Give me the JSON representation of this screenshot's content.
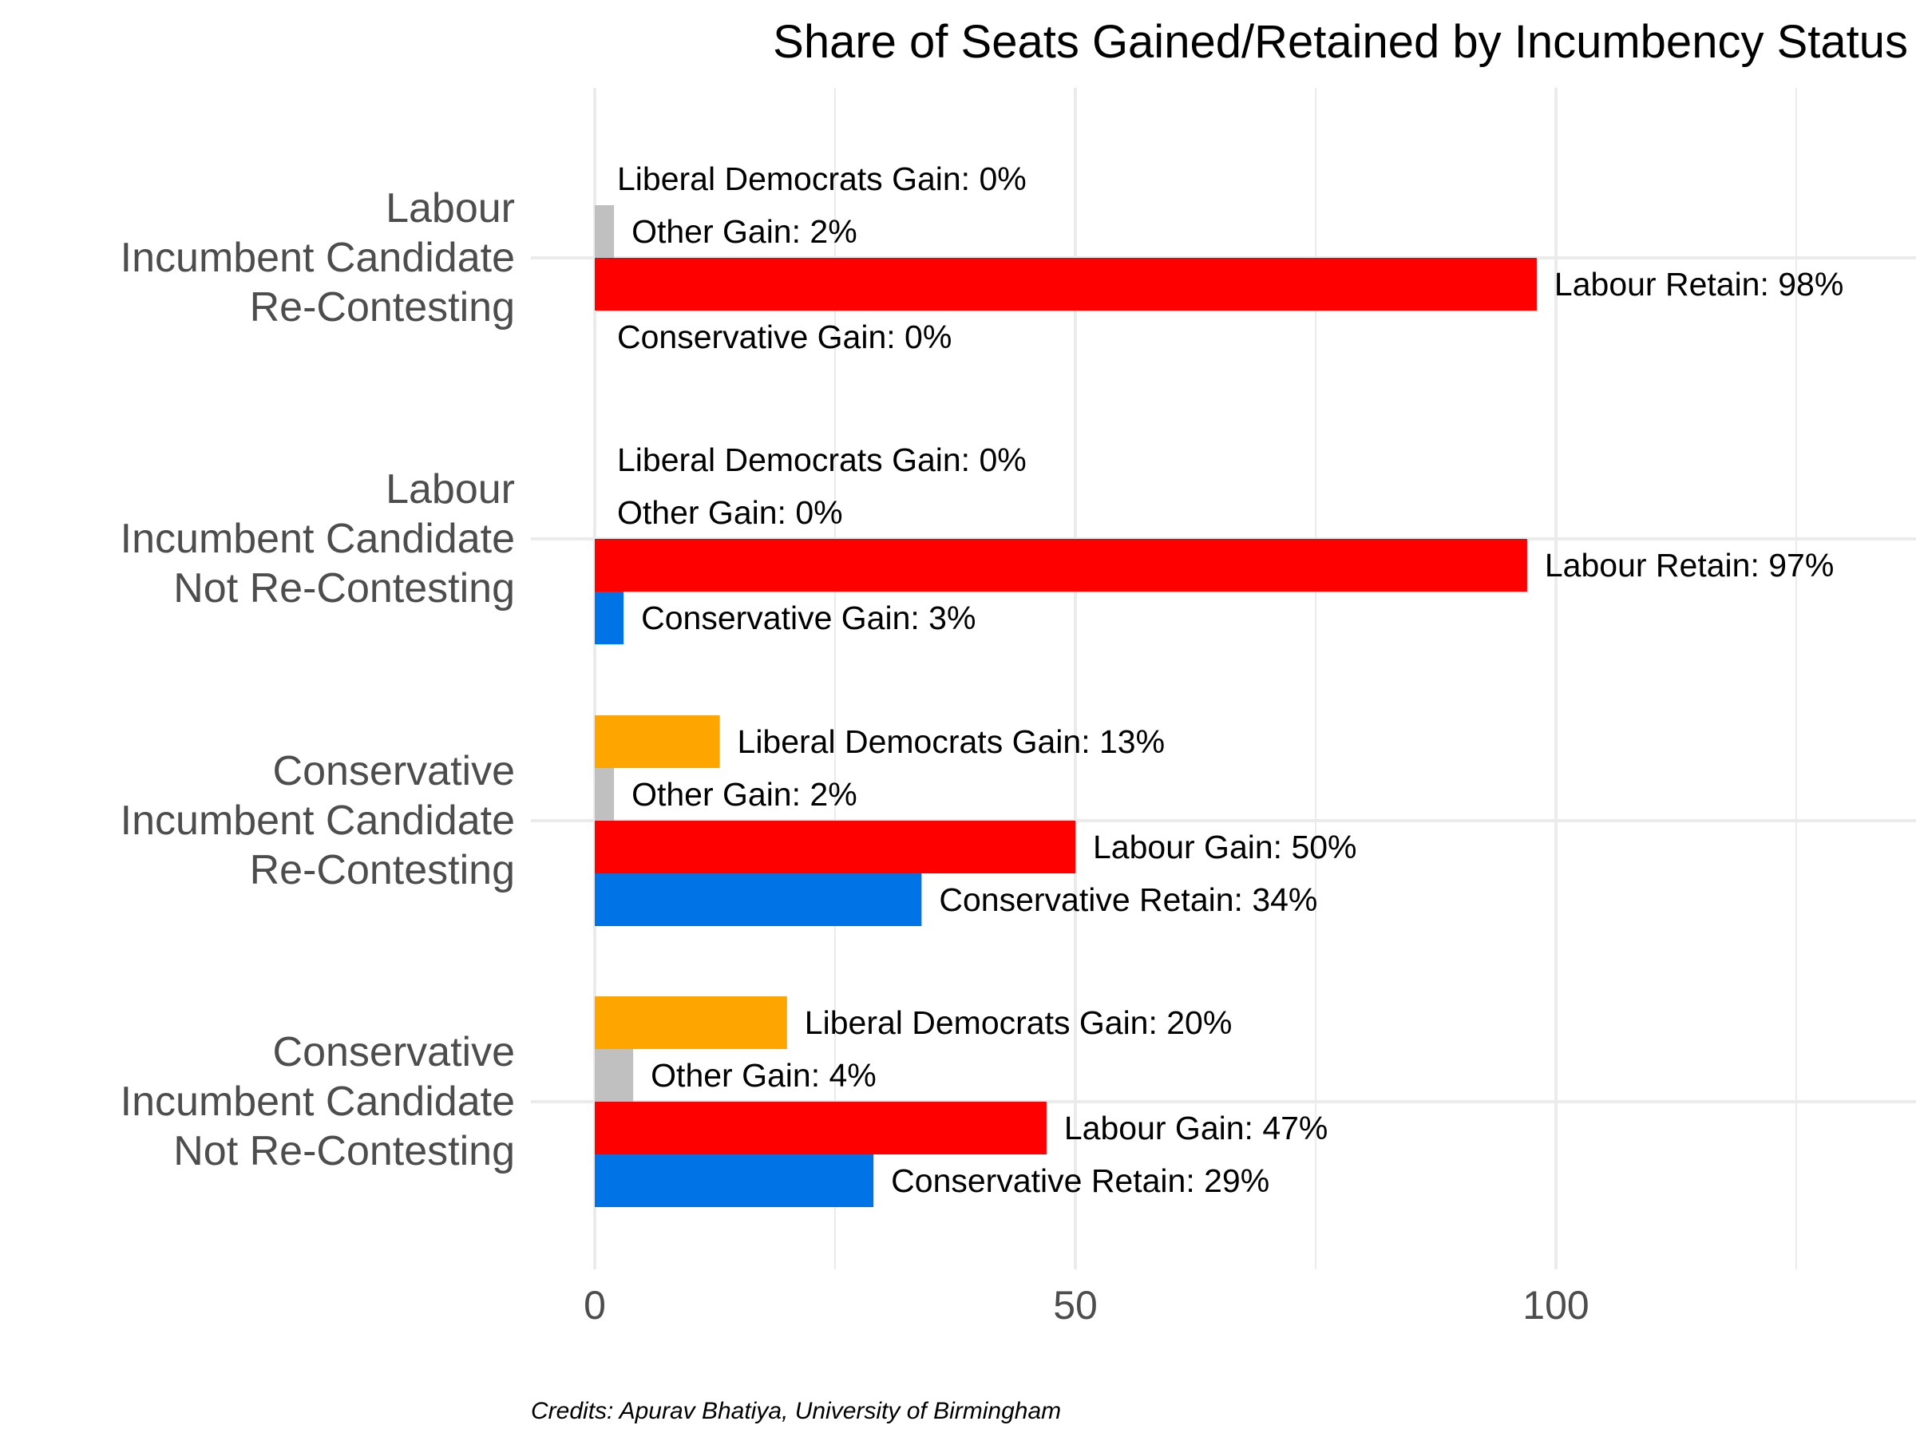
{
  "chart_data": {
    "type": "bar",
    "orientation": "horizontal",
    "title": "Share of Seats Gained/Retained by Incumbency Status",
    "xlabel": "",
    "ylabel": "",
    "xlim": [
      0,
      135
    ],
    "x_ticks": [
      0,
      50,
      100
    ],
    "grid": true,
    "legend": "none",
    "caption": "Credits: Apurav Bhatiya, University of Birmingham",
    "colors": {
      "Liberal Democrats": "#FFA500",
      "Other": "#C0C0C0",
      "Labour": "#FF0000",
      "Conservative": "#0073E6"
    },
    "categories": [
      {
        "label_lines": [
          "Labour",
          "Incumbent Candidate",
          "Re-Contesting"
        ],
        "bars": [
          {
            "party": "Liberal Democrats",
            "value": 0,
            "label": "Liberal Democrats Gain: 0%"
          },
          {
            "party": "Other",
            "value": 2,
            "label": "Other Gain: 2%"
          },
          {
            "party": "Labour",
            "value": 98,
            "label": "Labour Retain: 98%"
          },
          {
            "party": "Conservative",
            "value": 0,
            "label": "Conservative Gain: 0%"
          }
        ]
      },
      {
        "label_lines": [
          "Labour",
          "Incumbent Candidate",
          "Not Re-Contesting"
        ],
        "bars": [
          {
            "party": "Liberal Democrats",
            "value": 0,
            "label": "Liberal Democrats Gain: 0%"
          },
          {
            "party": "Other",
            "value": 0,
            "label": "Other Gain: 0%"
          },
          {
            "party": "Labour",
            "value": 97,
            "label": "Labour Retain: 97%"
          },
          {
            "party": "Conservative",
            "value": 3,
            "label": "Conservative Gain: 3%"
          }
        ]
      },
      {
        "label_lines": [
          "Conservative",
          "Incumbent Candidate",
          "Re-Contesting"
        ],
        "bars": [
          {
            "party": "Liberal Democrats",
            "value": 13,
            "label": "Liberal Democrats Gain: 13%"
          },
          {
            "party": "Other",
            "value": 2,
            "label": "Other Gain: 2%"
          },
          {
            "party": "Labour",
            "value": 50,
            "label": "Labour Gain: 50%"
          },
          {
            "party": "Conservative",
            "value": 34,
            "label": "Conservative Retain: 34%"
          }
        ]
      },
      {
        "label_lines": [
          "Conservative",
          "Incumbent Candidate",
          "Not Re-Contesting"
        ],
        "bars": [
          {
            "party": "Liberal Democrats",
            "value": 20,
            "label": "Liberal Democrats Gain: 20%"
          },
          {
            "party": "Other",
            "value": 4,
            "label": "Other Gain: 4%"
          },
          {
            "party": "Labour",
            "value": 47,
            "label": "Labour Gain: 47%"
          },
          {
            "party": "Conservative",
            "value": 29,
            "label": "Conservative Retain: 29%"
          }
        ]
      }
    ]
  }
}
